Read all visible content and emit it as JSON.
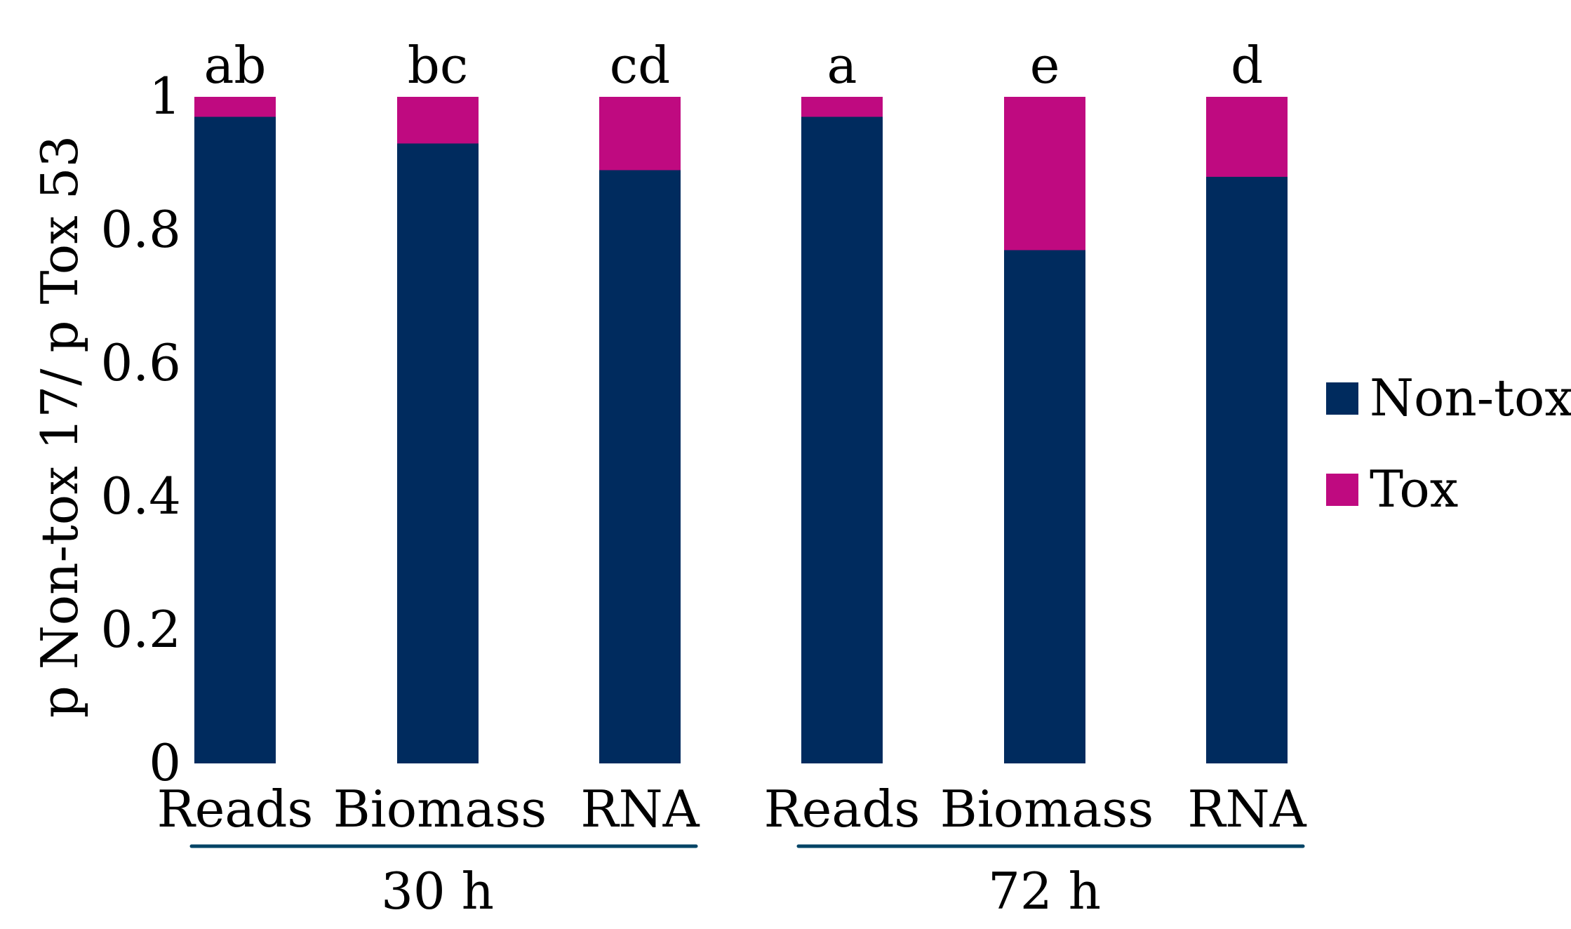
{
  "chart_data": {
    "type": "bar",
    "stacked": true,
    "ylabel": "p Non-tox 17/ p Tox 53",
    "xlabel": "",
    "ylim": [
      0,
      1
    ],
    "yticks": [
      "0",
      "0.2",
      "0.4",
      "0.6",
      "0.8",
      "1"
    ],
    "ytick_values": [
      0,
      0.2,
      0.4,
      0.6,
      0.8,
      1
    ],
    "categories": [
      "Reads",
      "Biomass",
      "RNA",
      "Reads",
      "Biomass",
      "RNA"
    ],
    "groups": [
      {
        "label": "30 h",
        "categories": [
          0,
          1,
          2
        ]
      },
      {
        "label": "72 h",
        "categories": [
          3,
          4,
          5
        ]
      }
    ],
    "significance_letters": [
      "ab",
      "bc",
      "cd",
      "a",
      "e",
      "d"
    ],
    "series": [
      {
        "name": "Non-tox",
        "color": "#002b5e",
        "values": [
          0.97,
          0.93,
          0.89,
          0.97,
          0.77,
          0.88
        ]
      },
      {
        "name": "Tox",
        "color": "#bf0a80",
        "values": [
          0.03,
          0.07,
          0.11,
          0.03,
          0.23,
          0.12
        ]
      }
    ],
    "legend": {
      "position": "right"
    },
    "grid": false
  }
}
